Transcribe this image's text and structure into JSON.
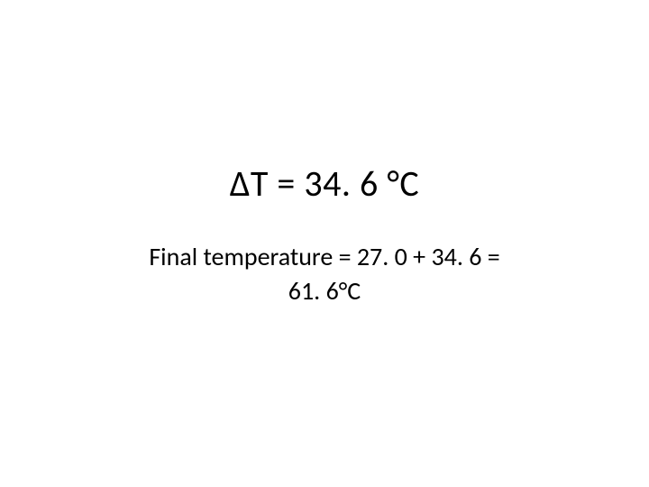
{
  "slide": {
    "main_equation": "ΔT = 34. 6 °C",
    "sub_equation_line1": "Final temperature = 27. 0 + 34. 6 =",
    "sub_equation_line2": "61. 6°C",
    "background_color": "#ffffff",
    "text_color": "#000000",
    "main_fontsize": 40,
    "sub_fontsize": 28
  }
}
